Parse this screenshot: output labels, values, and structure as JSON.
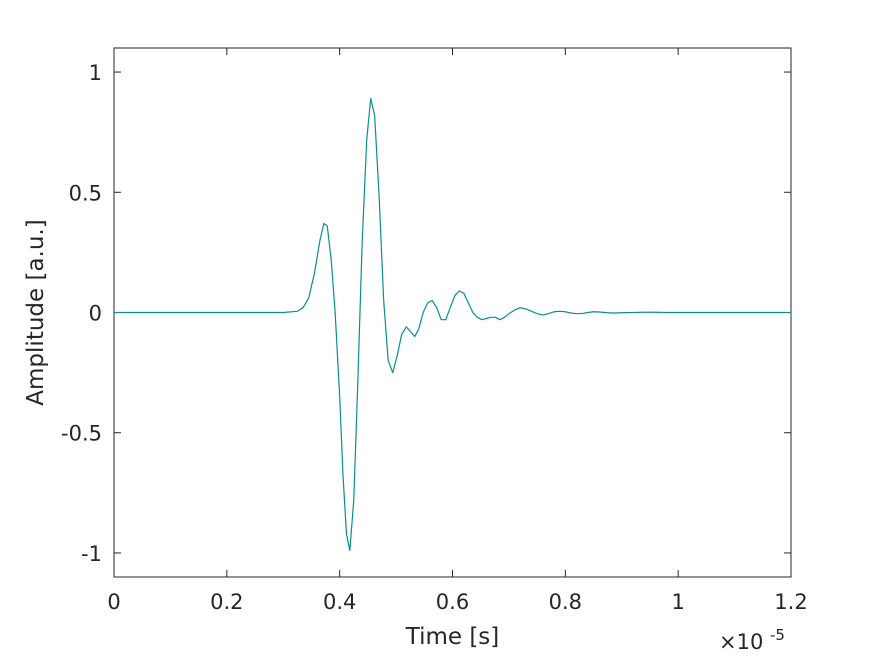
{
  "chart_data": {
    "type": "line",
    "title": "",
    "xlabel": "Time [s]",
    "ylabel": "Amplitude [a.u.]",
    "xlim": [
      0,
      1.2e-05
    ],
    "ylim": [
      -1.1,
      1.1
    ],
    "x_multiplier_base": "×10",
    "x_multiplier_exponent": "-5",
    "x_ticks": [
      0,
      0.2,
      0.4,
      0.6,
      0.8,
      1,
      1.2
    ],
    "x_tick_labels": [
      "0",
      "0.2",
      "0.4",
      "0.6",
      "0.8",
      "1",
      "1.2"
    ],
    "y_ticks": [
      -1,
      -0.5,
      0,
      0.5,
      1
    ],
    "y_tick_labels": [
      "-1",
      "-0.5",
      "0",
      "0.5",
      "1"
    ],
    "grid": false,
    "line_color": "#0a8e8e",
    "series": [
      {
        "x": [
          0,
          1e-06,
          2e-06,
          3e-06,
          3.25e-06,
          3.35e-06,
          3.45e-06,
          3.55e-06,
          3.65e-06,
          3.72e-06,
          3.78e-06,
          3.85e-06,
          3.92e-06,
          4e-06,
          4.06e-06,
          4.12e-06,
          4.18e-06,
          4.25e-06,
          4.32e-06,
          4.4e-06,
          4.48e-06,
          4.55e-06,
          4.62e-06,
          4.7e-06,
          4.78e-06,
          4.86e-06,
          4.94e-06,
          5.02e-06,
          5.1e-06,
          5.18e-06,
          5.26e-06,
          5.33e-06,
          5.4e-06,
          5.48e-06,
          5.56e-06,
          5.64e-06,
          5.72e-06,
          5.8e-06,
          5.88e-06,
          5.96e-06,
          6.04e-06,
          6.12e-06,
          6.2e-06,
          6.28e-06,
          6.36e-06,
          6.44e-06,
          6.52e-06,
          6.6e-06,
          6.68e-06,
          6.76e-06,
          6.84e-06,
          6.92e-06,
          7e-06,
          7.1e-06,
          7.2e-06,
          7.3e-06,
          7.4e-06,
          7.5e-06,
          7.6e-06,
          7.7e-06,
          7.8e-06,
          7.9e-06,
          8e-06,
          8.1e-06,
          8.2e-06,
          8.3e-06,
          8.4e-06,
          8.5e-06,
          8.6e-06,
          8.7e-06,
          8.8e-06,
          8.9e-06,
          9e-06,
          9.2e-06,
          9.4e-06,
          9.6e-06,
          9.8e-06,
          1e-05,
          1.02e-05,
          1.04e-05,
          1.06e-05,
          1.08e-05,
          1.1e-05,
          1.12e-05,
          1.14e-05,
          1.16e-05,
          1.18e-05,
          1.2e-05
        ],
        "y": [
          0,
          0,
          0,
          0,
          0.005,
          0.02,
          0.06,
          0.16,
          0.3,
          0.37,
          0.36,
          0.22,
          0.0,
          -0.35,
          -0.68,
          -0.92,
          -0.99,
          -0.78,
          -0.3,
          0.3,
          0.72,
          0.89,
          0.82,
          0.48,
          0.05,
          -0.2,
          -0.25,
          -0.18,
          -0.09,
          -0.06,
          -0.08,
          -0.1,
          -0.07,
          0.0,
          0.04,
          0.05,
          0.02,
          -0.03,
          -0.03,
          0.02,
          0.07,
          0.09,
          0.08,
          0.04,
          0.0,
          -0.02,
          -0.03,
          -0.025,
          -0.02,
          -0.02,
          -0.03,
          -0.02,
          -0.005,
          0.01,
          0.02,
          0.015,
          0.005,
          -0.005,
          -0.01,
          -0.005,
          0.003,
          0.005,
          0.003,
          -0.002,
          -0.005,
          -0.004,
          0.0,
          0.003,
          0.002,
          0.0,
          -0.002,
          -0.002,
          -0.001,
          0.0,
          0.001,
          0.001,
          0.0,
          0.0,
          0.0,
          0.0,
          0.0,
          0.0,
          0.0,
          0.0,
          0.0,
          0.0,
          0.0,
          0.0
        ]
      }
    ]
  }
}
